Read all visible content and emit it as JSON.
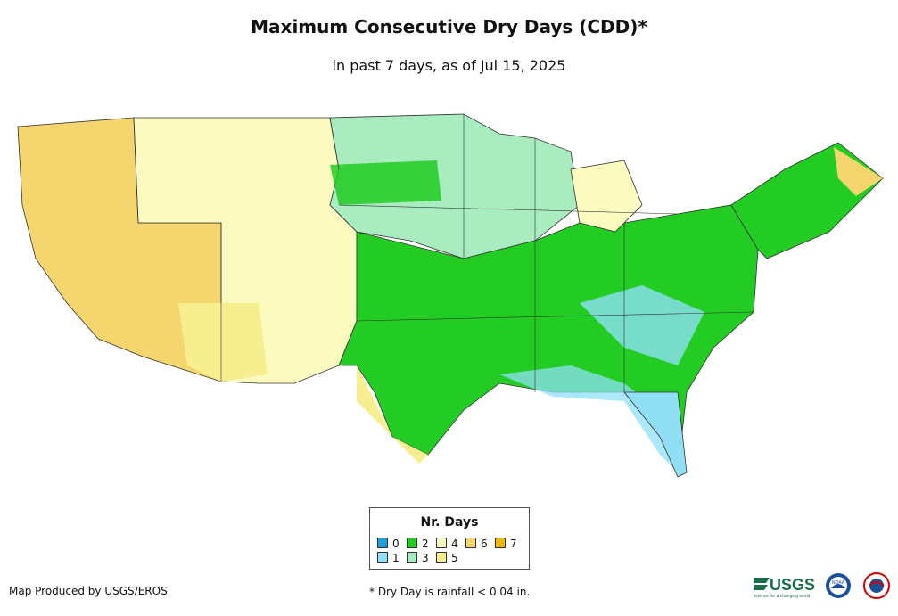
{
  "title": "Maximum Consecutive Dry Days (CDD)*",
  "subtitle": "in past 7 days, as of Jul 15, 2025",
  "legend": {
    "title": "Nr. Days",
    "items": [
      {
        "label": "0",
        "color": "#1f9ee0"
      },
      {
        "label": "1",
        "color": "#8fe0f5"
      },
      {
        "label": "2",
        "color": "#22cc22"
      },
      {
        "label": "3",
        "color": "#a8ecc0"
      },
      {
        "label": "4",
        "color": "#fbfbc0"
      },
      {
        "label": "5",
        "color": "#f7ee90"
      },
      {
        "label": "6",
        "color": "#f5d56e"
      },
      {
        "label": "7",
        "color": "#f0b800"
      }
    ]
  },
  "footer": {
    "credit": "Map Produced by USGS/EROS",
    "note": "* Dry Day is rainfall < 0.04 in."
  },
  "logos": {
    "usgs": "USGS",
    "usgs_tagline": "science for a changing world",
    "noaa": "NOAA"
  }
}
